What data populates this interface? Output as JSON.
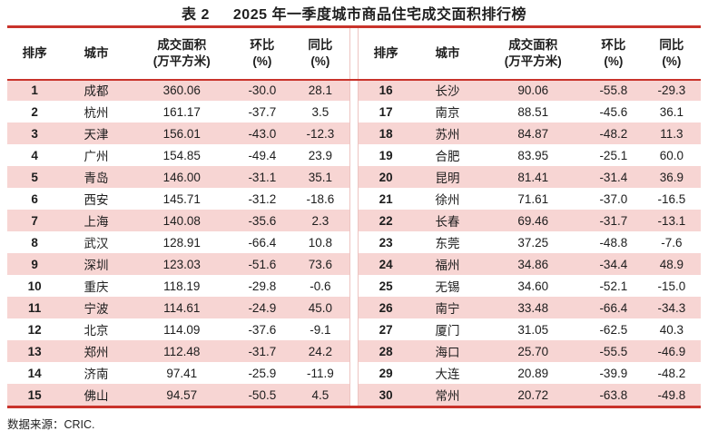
{
  "page": {
    "title_prefix": "表 2",
    "title_text": "2025 年一季度城市商品住宅成交面积排行榜",
    "source_note": "数据来源：CRIC."
  },
  "columns": {
    "rank": "排序",
    "city": "城市",
    "area_line1": "成交面积",
    "area_line2": "(万平方米)",
    "mom_line1": "环比",
    "mom_line2": "(%)",
    "yoy_line1": "同比",
    "yoy_line2": "(%)"
  },
  "tables": {
    "left": {
      "rows": [
        [
          "1",
          "成都",
          "360.06",
          "-30.0",
          "28.1"
        ],
        [
          "2",
          "杭州",
          "161.17",
          "-37.7",
          "3.5"
        ],
        [
          "3",
          "天津",
          "156.01",
          "-43.0",
          "-12.3"
        ],
        [
          "4",
          "广州",
          "154.85",
          "-49.4",
          "23.9"
        ],
        [
          "5",
          "青岛",
          "146.00",
          "-31.1",
          "35.1"
        ],
        [
          "6",
          "西安",
          "145.71",
          "-31.2",
          "-18.6"
        ],
        [
          "7",
          "上海",
          "140.08",
          "-35.6",
          "2.3"
        ],
        [
          "8",
          "武汉",
          "128.91",
          "-66.4",
          "10.8"
        ],
        [
          "9",
          "深圳",
          "123.03",
          "-51.6",
          "73.6"
        ],
        [
          "10",
          "重庆",
          "118.19",
          "-29.8",
          "-0.6"
        ],
        [
          "11",
          "宁波",
          "114.61",
          "-24.9",
          "45.0"
        ],
        [
          "12",
          "北京",
          "114.09",
          "-37.6",
          "-9.1"
        ],
        [
          "13",
          "郑州",
          "112.48",
          "-31.7",
          "24.2"
        ],
        [
          "14",
          "济南",
          "97.41",
          "-25.9",
          "-11.9"
        ],
        [
          "15",
          "佛山",
          "94.57",
          "-50.5",
          "4.5"
        ]
      ]
    },
    "right": {
      "rows": [
        [
          "16",
          "长沙",
          "90.06",
          "-55.8",
          "-29.3"
        ],
        [
          "17",
          "南京",
          "88.51",
          "-45.6",
          "36.1"
        ],
        [
          "18",
          "苏州",
          "84.87",
          "-48.2",
          "11.3"
        ],
        [
          "19",
          "合肥",
          "83.95",
          "-25.1",
          "60.0"
        ],
        [
          "20",
          "昆明",
          "81.41",
          "-31.4",
          "36.9"
        ],
        [
          "21",
          "徐州",
          "71.61",
          "-37.0",
          "-16.5"
        ],
        [
          "22",
          "长春",
          "69.46",
          "-31.7",
          "-13.1"
        ],
        [
          "23",
          "东莞",
          "37.25",
          "-48.8",
          "-7.6"
        ],
        [
          "24",
          "福州",
          "34.86",
          "-34.4",
          "48.9"
        ],
        [
          "25",
          "无锡",
          "34.60",
          "-52.1",
          "-15.0"
        ],
        [
          "26",
          "南宁",
          "33.48",
          "-66.4",
          "-34.3"
        ],
        [
          "27",
          "厦门",
          "31.05",
          "-62.5",
          "40.3"
        ],
        [
          "28",
          "海口",
          "25.70",
          "-55.5",
          "-46.9"
        ],
        [
          "29",
          "大连",
          "20.89",
          "-39.9",
          "-48.2"
        ],
        [
          "30",
          "常州",
          "20.72",
          "-63.8",
          "-49.8"
        ]
      ]
    }
  },
  "colors": {
    "accent_red": "#c9332b",
    "stripe_pink": "#f7d5d3",
    "text": "#1d1d1d",
    "gap_line": "#edc4c1"
  },
  "chart_data": {
    "type": "table",
    "title": "表 2　2025 年一季度城市商品住宅成交面积排行榜",
    "columns": [
      "排序",
      "城市",
      "成交面积(万平方米)",
      "环比(%)",
      "同比(%)"
    ],
    "rows": [
      [
        1,
        "成都",
        360.06,
        -30.0,
        28.1
      ],
      [
        2,
        "杭州",
        161.17,
        -37.7,
        3.5
      ],
      [
        3,
        "天津",
        156.01,
        -43.0,
        -12.3
      ],
      [
        4,
        "广州",
        154.85,
        -49.4,
        23.9
      ],
      [
        5,
        "青岛",
        146.0,
        -31.1,
        35.1
      ],
      [
        6,
        "西安",
        145.71,
        -31.2,
        -18.6
      ],
      [
        7,
        "上海",
        140.08,
        -35.6,
        2.3
      ],
      [
        8,
        "武汉",
        128.91,
        -66.4,
        10.8
      ],
      [
        9,
        "深圳",
        123.03,
        -51.6,
        73.6
      ],
      [
        10,
        "重庆",
        118.19,
        -29.8,
        -0.6
      ],
      [
        11,
        "宁波",
        114.61,
        -24.9,
        45.0
      ],
      [
        12,
        "北京",
        114.09,
        -37.6,
        -9.1
      ],
      [
        13,
        "郑州",
        112.48,
        -31.7,
        24.2
      ],
      [
        14,
        "济南",
        97.41,
        -25.9,
        -11.9
      ],
      [
        15,
        "佛山",
        94.57,
        -50.5,
        4.5
      ],
      [
        16,
        "长沙",
        90.06,
        -55.8,
        -29.3
      ],
      [
        17,
        "南京",
        88.51,
        -45.6,
        36.1
      ],
      [
        18,
        "苏州",
        84.87,
        -48.2,
        11.3
      ],
      [
        19,
        "合肥",
        83.95,
        -25.1,
        60.0
      ],
      [
        20,
        "昆明",
        81.41,
        -31.4,
        36.9
      ],
      [
        21,
        "徐州",
        71.61,
        -37.0,
        -16.5
      ],
      [
        22,
        "长春",
        69.46,
        -31.7,
        -13.1
      ],
      [
        23,
        "东莞",
        37.25,
        -48.8,
        -7.6
      ],
      [
        24,
        "福州",
        34.86,
        -34.4,
        48.9
      ],
      [
        25,
        "无锡",
        34.6,
        -52.1,
        -15.0
      ],
      [
        26,
        "南宁",
        33.48,
        -66.4,
        -34.3
      ],
      [
        27,
        "厦门",
        31.05,
        -62.5,
        40.3
      ],
      [
        28,
        "海口",
        25.7,
        -55.5,
        -46.9
      ],
      [
        29,
        "大连",
        20.89,
        -39.9,
        -48.2
      ],
      [
        30,
        "常州",
        20.72,
        -63.8,
        -49.8
      ]
    ],
    "source": "数据来源：CRIC."
  }
}
